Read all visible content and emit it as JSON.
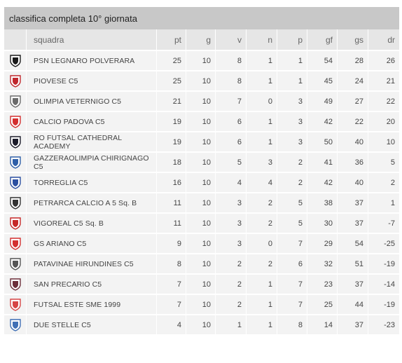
{
  "title": "classifica completa 10° giornata",
  "headers": {
    "logo": "",
    "team": "squadra",
    "pt": "pt",
    "g": "g",
    "v": "v",
    "n": "n",
    "p": "p",
    "gf": "gf",
    "gs": "gs",
    "dr": "dr"
  },
  "rows": [
    {
      "logo_icon": "psn-legnaro-logo-icon",
      "logo_color": "#1a1a1a",
      "team": "PSN LEGNARO POLVERARA",
      "pt": "25",
      "g": "10",
      "v": "8",
      "n": "1",
      "p": "1",
      "gf": "54",
      "gs": "28",
      "dr": "26"
    },
    {
      "logo_icon": "piovese-logo-icon",
      "logo_color": "#c0282d",
      "team": "PIOVESE C5",
      "pt": "25",
      "g": "10",
      "v": "8",
      "n": "1",
      "p": "1",
      "gf": "45",
      "gs": "24",
      "dr": "21"
    },
    {
      "logo_icon": "olimpia-veternigo-logo-icon",
      "logo_color": "#6b6b6b",
      "team": "OLIMPIA VETERNIGO C5",
      "pt": "21",
      "g": "10",
      "v": "7",
      "n": "0",
      "p": "3",
      "gf": "49",
      "gs": "27",
      "dr": "22"
    },
    {
      "logo_icon": "calcio-padova-logo-icon",
      "logo_color": "#d32f2f",
      "team": "CALCIO PADOVA C5",
      "pt": "19",
      "g": "10",
      "v": "6",
      "n": "1",
      "p": "3",
      "gf": "42",
      "gs": "22",
      "dr": "20"
    },
    {
      "logo_icon": "ro-futsal-logo-icon",
      "logo_color": "#1c1c2a",
      "team": "RO FUTSAL CATHEDRAL ACADEMY",
      "pt": "19",
      "g": "10",
      "v": "6",
      "n": "1",
      "p": "3",
      "gf": "50",
      "gs": "40",
      "dr": "10"
    },
    {
      "logo_icon": "gazzeraolimpia-logo-icon",
      "logo_color": "#2f5fa8",
      "team": "GAZZERAOLIMPIA CHIRIGNAGO C5",
      "pt": "18",
      "g": "10",
      "v": "5",
      "n": "3",
      "p": "2",
      "gf": "41",
      "gs": "36",
      "dr": "5"
    },
    {
      "logo_icon": "torreglia-logo-icon",
      "logo_color": "#2b4fa0",
      "team": "TORREGLIA C5",
      "pt": "16",
      "g": "10",
      "v": "4",
      "n": "4",
      "p": "2",
      "gf": "42",
      "gs": "40",
      "dr": "2"
    },
    {
      "logo_icon": "petrarca-logo-icon",
      "logo_color": "#333333",
      "team": "PETRARCA CALCIO A 5 Sq. B",
      "pt": "11",
      "g": "10",
      "v": "3",
      "n": "2",
      "p": "5",
      "gf": "38",
      "gs": "37",
      "dr": "1"
    },
    {
      "logo_icon": "vigoreal-logo-icon",
      "logo_color": "#c62828",
      "team": "VIGOREAL C5 Sq. B",
      "pt": "11",
      "g": "10",
      "v": "3",
      "n": "2",
      "p": "5",
      "gf": "30",
      "gs": "37",
      "dr": "-7"
    },
    {
      "logo_icon": "gs-ariano-logo-icon",
      "logo_color": "#d32f2f",
      "team": "GS ARIANO C5",
      "pt": "9",
      "g": "10",
      "v": "3",
      "n": "0",
      "p": "7",
      "gf": "29",
      "gs": "54",
      "dr": "-25"
    },
    {
      "logo_icon": "patavinae-logo-icon",
      "logo_color": "#555555",
      "team": "PATAVINAE HIRUNDINES C5",
      "pt": "8",
      "g": "10",
      "v": "2",
      "n": "2",
      "p": "6",
      "gf": "32",
      "gs": "51",
      "dr": "-19"
    },
    {
      "logo_icon": "san-precario-logo-icon",
      "logo_color": "#6d2f3a",
      "team": "SAN PRECARIO C5",
      "pt": "7",
      "g": "10",
      "v": "2",
      "n": "1",
      "p": "7",
      "gf": "23",
      "gs": "37",
      "dr": "-14"
    },
    {
      "logo_icon": "futsal-este-logo-icon",
      "logo_color": "#d64545",
      "team": "FUTSAL ESTE SME 1999",
      "pt": "7",
      "g": "10",
      "v": "2",
      "n": "1",
      "p": "7",
      "gf": "25",
      "gs": "44",
      "dr": "-19"
    },
    {
      "logo_icon": "due-stelle-logo-icon",
      "logo_color": "#3f6fb5",
      "team": "DUE STELLE C5",
      "pt": "4",
      "g": "10",
      "v": "1",
      "n": "1",
      "p": "8",
      "gf": "14",
      "gs": "37",
      "dr": "-23"
    }
  ]
}
